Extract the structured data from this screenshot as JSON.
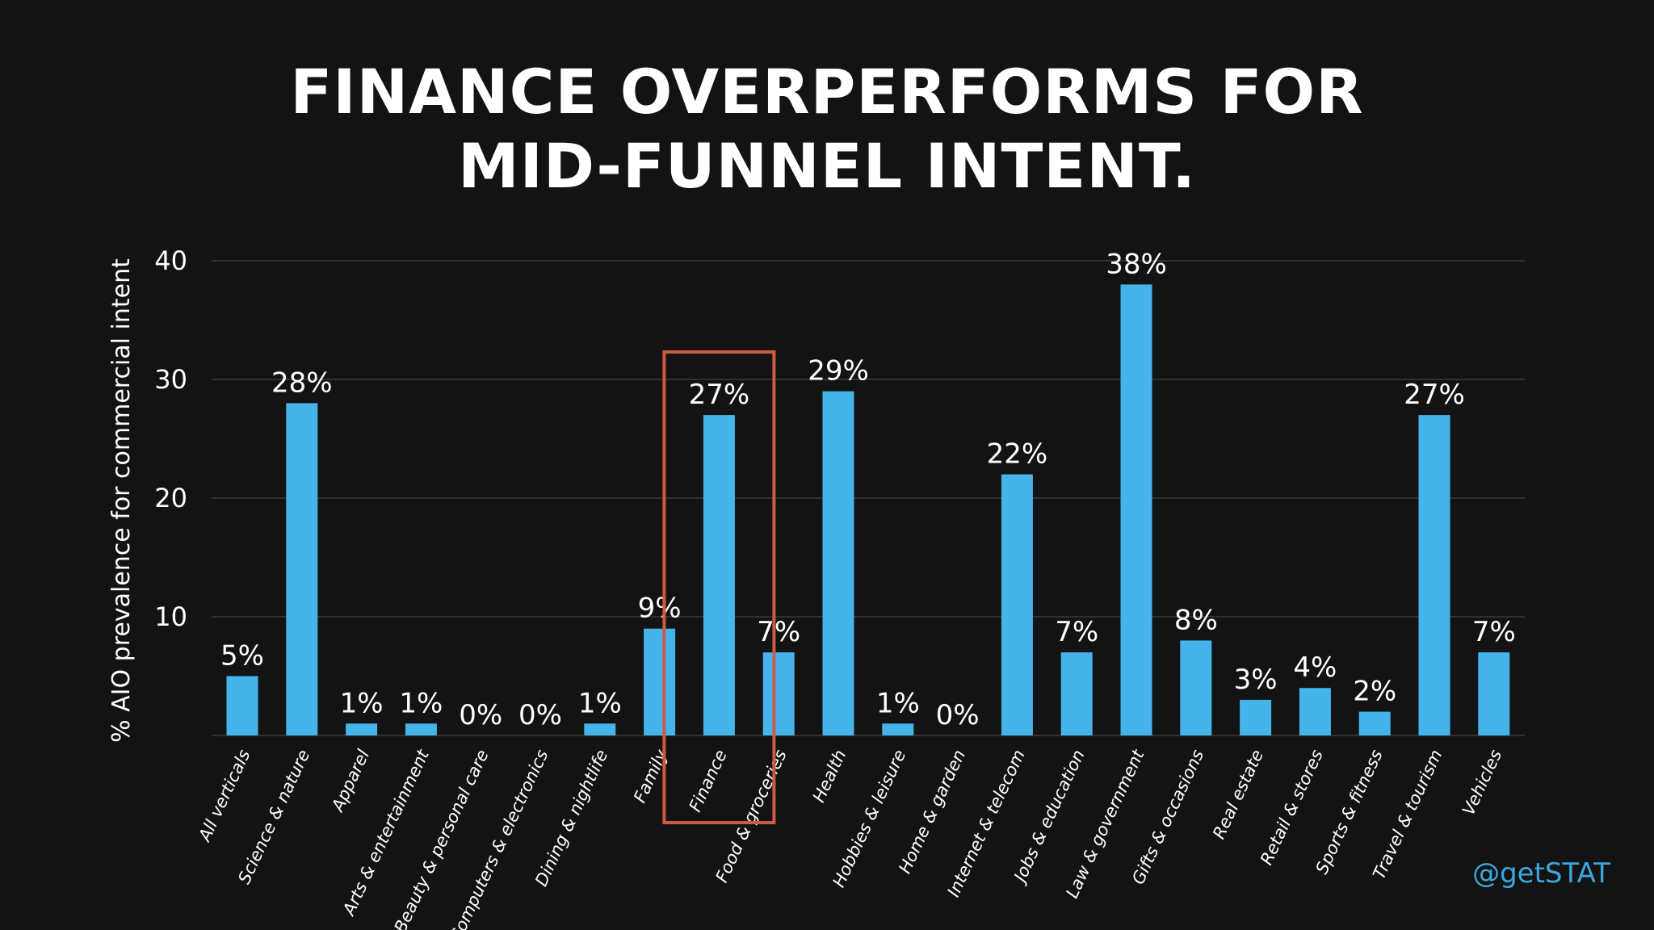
{
  "title": {
    "line1": "FINANCE OVERPERFORMS FOR",
    "line2": "MID-FUNNEL INTENT."
  },
  "handle": "@getSTAT",
  "colors": {
    "background": "#131313",
    "bar": "#45b4ea",
    "grid": "#3a3a3a",
    "highlight": "#cf5a44",
    "handle": "#3aa8dd",
    "text": "#ffffff"
  },
  "chart_data": {
    "type": "bar",
    "title": "FINANCE OVERPERFORMS FOR MID-FUNNEL INTENT.",
    "ylabel": "% AIO prevalence for commercial intent",
    "xlabel": "",
    "ylim": [
      0,
      40
    ],
    "yticks": [
      10,
      20,
      30,
      40
    ],
    "grid": true,
    "highlight_category": "Finance",
    "categories": [
      "All verticals",
      "Science & nature",
      "Apparel",
      "Arts & entertainment",
      "Beauty & personal care",
      "Computers & electronics",
      "Dining & nightlife",
      "Family",
      "Finance",
      "Food & groceries",
      "Health",
      "Hobbies & leisure",
      "Home & garden",
      "Internet & telecom",
      "Jobs & education",
      "Law & government",
      "Gifts & occasions",
      "Real estate",
      "Retail & stores",
      "Sports & fitness",
      "Travel & tourism",
      "Vehicles"
    ],
    "values": [
      5,
      28,
      1,
      1,
      0,
      0,
      1,
      9,
      27,
      7,
      29,
      1,
      0,
      22,
      7,
      38,
      8,
      3,
      4,
      2,
      27,
      7
    ],
    "data_labels": [
      "5%",
      "28%",
      "1%",
      "1%",
      "0%",
      "0%",
      "1%",
      "9%",
      "27%",
      "7%",
      "29%",
      "1%",
      "0%",
      "22%",
      "7%",
      "38%",
      "8%",
      "3%",
      "4%",
      "2%",
      "27%",
      "7%"
    ]
  }
}
